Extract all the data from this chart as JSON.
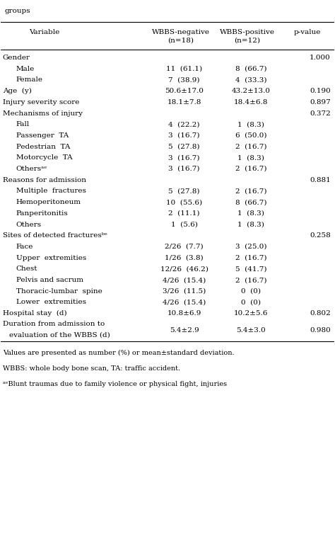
{
  "title": "groups",
  "col_headers": [
    "Variable",
    "WBBS-negative\n(n=18)",
    "WBBS-positive\n(n=12)",
    "p-value"
  ],
  "rows": [
    {
      "label": "Gender",
      "indent": 0,
      "wbbs_neg": "",
      "wbbs_pos": "",
      "pvalue": "1.000"
    },
    {
      "label": "Male",
      "indent": 1,
      "wbbs_neg": "11  (61.1)",
      "wbbs_pos": "8  (66.7)",
      "pvalue": ""
    },
    {
      "label": "Female",
      "indent": 1,
      "wbbs_neg": "7  (38.9)",
      "wbbs_pos": "4  (33.3)",
      "pvalue": ""
    },
    {
      "label": "Age  (y)",
      "indent": 0,
      "wbbs_neg": "50.6±17.0",
      "wbbs_pos": "43.2±13.0",
      "pvalue": "0.190"
    },
    {
      "label": "Injury severity score",
      "indent": 0,
      "wbbs_neg": "18.1±7.8",
      "wbbs_pos": "18.4±6.8",
      "pvalue": "0.897"
    },
    {
      "label": "Mechanisms of injury",
      "indent": 0,
      "wbbs_neg": "",
      "wbbs_pos": "",
      "pvalue": "0.372"
    },
    {
      "label": "Fall",
      "indent": 1,
      "wbbs_neg": "4  (22.2)",
      "wbbs_pos": "1  (8.3)",
      "pvalue": ""
    },
    {
      "label": "Passenger  TA",
      "indent": 1,
      "wbbs_neg": "3  (16.7)",
      "wbbs_pos": "6  (50.0)",
      "pvalue": ""
    },
    {
      "label": "Pedestrian  TA",
      "indent": 1,
      "wbbs_neg": "5  (27.8)",
      "wbbs_pos": "2  (16.7)",
      "pvalue": ""
    },
    {
      "label": "Motorcycle  TA",
      "indent": 1,
      "wbbs_neg": "3  (16.7)",
      "wbbs_pos": "1  (8.3)",
      "pvalue": ""
    },
    {
      "label": "Othersᵃᵉ",
      "indent": 1,
      "wbbs_neg": "3  (16.7)",
      "wbbs_pos": "2  (16.7)",
      "pvalue": ""
    },
    {
      "label": "Reasons for admission",
      "indent": 0,
      "wbbs_neg": "",
      "wbbs_pos": "",
      "pvalue": "0.881"
    },
    {
      "label": "Multiple  fractures",
      "indent": 1,
      "wbbs_neg": "5  (27.8)",
      "wbbs_pos": "2  (16.7)",
      "pvalue": ""
    },
    {
      "label": "Hemoperitoneum",
      "indent": 1,
      "wbbs_neg": "10  (55.6)",
      "wbbs_pos": "8  (66.7)",
      "pvalue": ""
    },
    {
      "label": "Panperitonitis",
      "indent": 1,
      "wbbs_neg": "2  (11.1)",
      "wbbs_pos": "1  (8.3)",
      "pvalue": ""
    },
    {
      "label": "Others",
      "indent": 1,
      "wbbs_neg": "1  (5.6)",
      "wbbs_pos": "1  (8.3)",
      "pvalue": ""
    },
    {
      "label": "Sites of detected fracturesᵇᵉ",
      "indent": 0,
      "wbbs_neg": "",
      "wbbs_pos": "",
      "pvalue": "0.258"
    },
    {
      "label": "Face",
      "indent": 1,
      "wbbs_neg": "2/26  (7.7)",
      "wbbs_pos": "3  (25.0)",
      "pvalue": ""
    },
    {
      "label": "Upper  extremities",
      "indent": 1,
      "wbbs_neg": "1/26  (3.8)",
      "wbbs_pos": "2  (16.7)",
      "pvalue": ""
    },
    {
      "label": "Chest",
      "indent": 1,
      "wbbs_neg": "12/26  (46.2)",
      "wbbs_pos": "5  (41.7)",
      "pvalue": ""
    },
    {
      "label": "Pelvis and sacrum",
      "indent": 1,
      "wbbs_neg": "4/26  (15.4)",
      "wbbs_pos": "2  (16.7)",
      "pvalue": ""
    },
    {
      "label": "Thoracic-lumbar  spine",
      "indent": 1,
      "wbbs_neg": "3/26  (11.5)",
      "wbbs_pos": "0  (0)",
      "pvalue": ""
    },
    {
      "label": "Lower  extremities",
      "indent": 1,
      "wbbs_neg": "4/26  (15.4)",
      "wbbs_pos": "0  (0)",
      "pvalue": ""
    },
    {
      "label": "Hospital stay  (d)",
      "indent": 0,
      "wbbs_neg": "10.8±6.9",
      "wbbs_pos": "10.2±5.6",
      "pvalue": "0.802"
    },
    {
      "label": "Duration from admission to\n   evaluation of the WBBS (d)",
      "indent": 0,
      "wbbs_neg": "5.4±2.9",
      "wbbs_pos": "5.4±3.0",
      "pvalue": "0.980"
    }
  ],
  "footnotes": [
    "Values are presented as number (%) or mean±standard deviation.",
    "WBBS: whole body bone scan, TA: traffic accident.",
    "ᵃᵉBlunt traumas due to family violence or physical fight, injuries"
  ],
  "bg_color": "#ffffff",
  "text_color": "#000000",
  "font_size": 7.5,
  "header_font_size": 7.5
}
